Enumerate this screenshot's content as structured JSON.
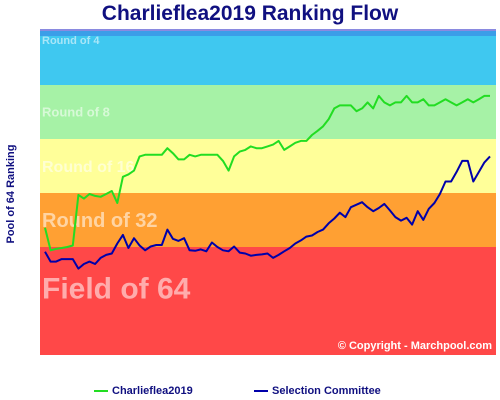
{
  "chart_data": {
    "type": "line",
    "title": "Charlieflea2019 Ranking Flow",
    "ylabel": "Pool of 64 Ranking",
    "ylim": [
      64,
      1
    ],
    "bands": [
      {
        "label": "Round of 4",
        "from": 1,
        "to": 2,
        "color": "#3fc8f0"
      },
      {
        "label": "Round of 8",
        "from": 2,
        "to": 4,
        "color": "#a6f2a6"
      },
      {
        "label": "Round of 16",
        "from": 4,
        "to": 8,
        "color": "#ffff99"
      },
      {
        "label": "Round of 32",
        "from": 8,
        "to": 16,
        "color": "#ffa033"
      },
      {
        "label": "Field of 64",
        "from": 16,
        "to": 32,
        "color": "#ff4848"
      }
    ],
    "copyright": "© Copyright - Marchpool.com",
    "series": [
      {
        "name": "Charlieflea2019",
        "color": "#22dd22",
        "values": [
          12.5,
          16.7,
          16.4,
          16.2,
          16.0,
          15.7,
          8.2,
          8.6,
          8.1,
          8.3,
          8.4,
          8.1,
          7.8,
          9.1,
          6.5,
          6.3,
          6.0,
          5.0,
          4.9,
          4.9,
          4.9,
          4.9,
          4.5,
          4.8,
          5.2,
          5.2,
          4.9,
          5.0,
          4.9,
          4.9,
          4.9,
          4.9,
          5.3,
          6.0,
          5.0,
          4.7,
          4.6,
          4.4,
          4.5,
          4.5,
          4.4,
          4.3,
          4.1,
          4.6,
          4.4,
          4.2,
          4.1,
          4.1,
          3.8,
          3.6,
          3.4,
          3.1,
          2.7,
          2.6,
          2.6,
          2.6,
          2.8,
          2.7,
          2.5,
          2.7,
          2.3,
          2.5,
          2.6,
          2.5,
          2.5,
          2.3,
          2.5,
          2.5,
          2.4,
          2.6,
          2.6,
          2.5,
          2.4,
          2.5,
          2.6,
          2.5,
          2.4,
          2.5,
          2.4,
          2.3,
          2.3
        ]
      },
      {
        "name": "Selection Committee",
        "color": "#0000aa",
        "values": [
          17.0,
          19.3,
          19.3,
          18.7,
          18.7,
          18.7,
          21.1,
          19.9,
          19.3,
          19.9,
          18.4,
          17.7,
          17.4,
          15.3,
          13.7,
          16.2,
          14.3,
          15.7,
          16.7,
          15.9,
          15.6,
          15.6,
          12.8,
          14.4,
          14.8,
          14.3,
          16.7,
          16.8,
          16.5,
          16.9,
          15.1,
          16.0,
          16.7,
          16.9,
          15.9,
          17.2,
          17.4,
          17.9,
          17.7,
          17.6,
          17.4,
          18.4,
          17.7,
          16.9,
          16.2,
          15.3,
          14.7,
          14.0,
          13.8,
          13.2,
          12.8,
          11.8,
          11.1,
          10.3,
          10.9,
          9.6,
          9.3,
          9.0,
          9.6,
          10.1,
          9.7,
          9.2,
          10.0,
          10.9,
          11.4,
          11.0,
          12.0,
          10.1,
          11.3,
          9.8,
          9.1,
          8.1,
          6.9,
          6.9,
          6.1,
          5.3,
          5.3,
          6.9,
          6.1,
          5.4,
          5.0
        ]
      }
    ]
  }
}
